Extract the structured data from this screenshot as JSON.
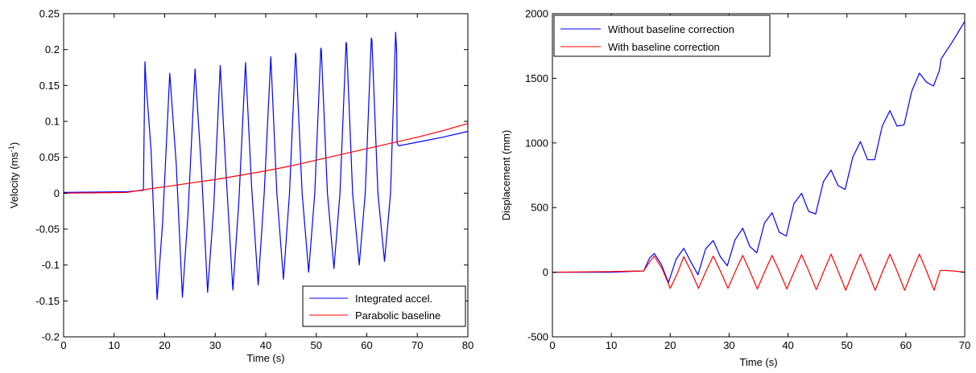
{
  "chart_data": [
    {
      "type": "line",
      "title": "",
      "xlabel": "Time (s)",
      "ylabel_base": "Velocity (ms",
      "ylabel_sup": "-1",
      "ylabel_tail": ")",
      "xlim": [
        0,
        80
      ],
      "ylim": [
        -0.2,
        0.25
      ],
      "xticks": [
        0,
        10,
        20,
        30,
        40,
        50,
        60,
        70,
        80
      ],
      "xtick_labels": [
        "0",
        "10",
        "20",
        "30",
        "40",
        "50",
        "60",
        "70",
        "80"
      ],
      "yticks": [
        -0.2,
        -0.15,
        -0.1,
        -0.05,
        0,
        0.05,
        0.1,
        0.15,
        0.2,
        0.25
      ],
      "ytick_labels": [
        "-0.2",
        "-0.15",
        "-0.1",
        "-0.05",
        "0",
        "0.05",
        "0.1",
        "0.15",
        "0.2",
        "0.25"
      ],
      "grid": false,
      "legend_position": "bottom-right",
      "series": [
        {
          "name": "Integrated accel.",
          "color": "#0000ff",
          "x": [
            0,
            12.5,
            15.8,
            16.1,
            16.3,
            17.3,
            18.5,
            19.6,
            21.0,
            22.3,
            23.5,
            24.6,
            26.0,
            27.3,
            28.5,
            29.7,
            31.0,
            32.2,
            33.5,
            34.7,
            36.0,
            37.2,
            38.5,
            39.7,
            41.0,
            42.2,
            43.5,
            44.7,
            45.9,
            46.0,
            47.2,
            48.5,
            49.7,
            50.9,
            51.0,
            52.2,
            53.5,
            54.7,
            55.9,
            56.0,
            57.2,
            58.5,
            59.7,
            60.9,
            61.0,
            62.2,
            63.5,
            64.7,
            65.7,
            65.9,
            66.0,
            66.3,
            70,
            75,
            80
          ],
          "y": [
            0.001,
            0.002,
            0.004,
            0.183,
            0.155,
            0.06,
            -0.148,
            -0.04,
            0.167,
            0.04,
            -0.145,
            -0.03,
            0.173,
            0.03,
            -0.138,
            -0.02,
            0.178,
            0.02,
            -0.135,
            -0.01,
            0.182,
            0.01,
            -0.128,
            0.0,
            0.19,
            0.0,
            -0.12,
            0.0,
            0.195,
            0.19,
            0.0,
            -0.11,
            0.0,
            0.202,
            0.2,
            0.0,
            -0.105,
            0.0,
            0.21,
            0.208,
            0.0,
            -0.1,
            0.0,
            0.216,
            0.214,
            0.0,
            -0.095,
            0.0,
            0.224,
            0.2,
            0.07,
            0.066,
            0.071,
            0.078,
            0.086
          ]
        },
        {
          "name": "Parabolic baseline",
          "color": "#ff0000",
          "x": [
            0,
            12.5,
            16,
            20,
            25,
            30,
            35,
            40,
            45,
            50,
            55,
            60,
            65,
            70,
            75,
            80
          ],
          "y": [
            0.0,
            0.001,
            0.005,
            0.009,
            0.014,
            0.019,
            0.025,
            0.031,
            0.038,
            0.046,
            0.054,
            0.062,
            0.07,
            0.078,
            0.087,
            0.097
          ]
        }
      ]
    },
    {
      "type": "line",
      "title": "",
      "xlabel": "Time (s)",
      "ylabel": "Displacement (mm)",
      "xlim": [
        0,
        70
      ],
      "ylim": [
        -500,
        2000
      ],
      "xticks": [
        0,
        10,
        20,
        30,
        40,
        50,
        60,
        70
      ],
      "xtick_labels": [
        "0",
        "10",
        "20",
        "30",
        "40",
        "50",
        "60",
        "70"
      ],
      "yticks": [
        -500,
        0,
        500,
        1000,
        1500,
        2000
      ],
      "ytick_labels": [
        "-500",
        "0",
        "500",
        "1000",
        "1500",
        "2000"
      ],
      "grid": false,
      "legend_position": "top-left",
      "series": [
        {
          "name": "Without baseline correction",
          "color": "#0000ff",
          "x": [
            0,
            10,
            15.5,
            16.5,
            17.3,
            18.5,
            19.7,
            21.0,
            22.3,
            23.5,
            24.7,
            26.0,
            27.3,
            28.5,
            29.7,
            31.0,
            32.3,
            33.5,
            34.7,
            36.0,
            37.3,
            38.5,
            39.7,
            41.0,
            42.3,
            43.5,
            44.7,
            46.0,
            47.3,
            48.5,
            49.7,
            51.0,
            52.3,
            53.5,
            54.7,
            56.0,
            57.3,
            58.5,
            59.7,
            61.0,
            62.3,
            63.5,
            64.7,
            65.7,
            66.0,
            68,
            70
          ],
          "y": [
            0,
            0,
            10,
            110,
            145,
            60,
            -80,
            100,
            185,
            80,
            -20,
            180,
            245,
            120,
            50,
            250,
            340,
            200,
            150,
            380,
            460,
            310,
            280,
            530,
            610,
            470,
            450,
            700,
            790,
            670,
            640,
            890,
            1010,
            870,
            870,
            1130,
            1250,
            1130,
            1140,
            1400,
            1540,
            1470,
            1440,
            1560,
            1650,
            1790,
            1940
          ]
        },
        {
          "name": "With baseline correction",
          "color": "#ff0000",
          "x": [
            0,
            10,
            15.5,
            16.5,
            17.3,
            18.7,
            20.0,
            21.2,
            22.3,
            23.5,
            24.8,
            26.0,
            27.3,
            28.5,
            29.8,
            31.0,
            32.3,
            33.5,
            34.8,
            36.0,
            37.3,
            38.5,
            39.8,
            41.0,
            42.3,
            43.5,
            44.8,
            46.0,
            47.3,
            48.5,
            49.8,
            51.0,
            52.3,
            53.5,
            54.8,
            56.0,
            57.3,
            58.5,
            59.8,
            61.0,
            62.3,
            63.5,
            64.8,
            65.8,
            66.0,
            68,
            70
          ],
          "y": [
            0,
            5,
            10,
            80,
            125,
            20,
            -125,
            -10,
            120,
            10,
            -125,
            0,
            125,
            10,
            -125,
            0,
            130,
            10,
            -130,
            0,
            130,
            10,
            -130,
            0,
            135,
            10,
            -135,
            0,
            140,
            10,
            -140,
            0,
            140,
            10,
            -140,
            0,
            140,
            10,
            -140,
            0,
            140,
            10,
            -140,
            10,
            15,
            10,
            0
          ]
        }
      ]
    }
  ]
}
